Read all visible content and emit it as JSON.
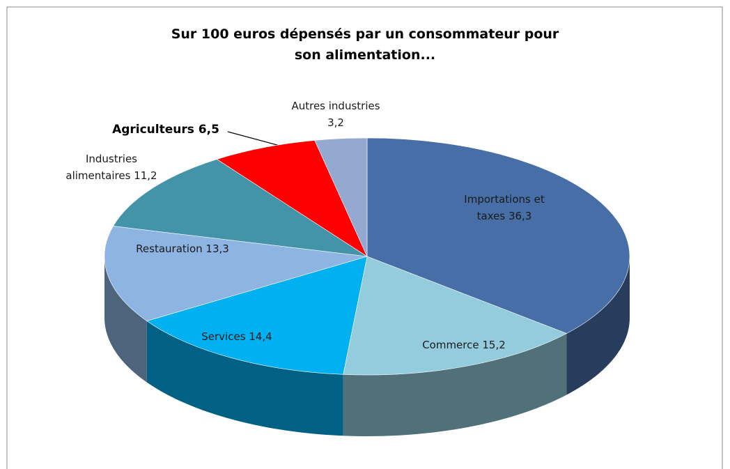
{
  "chart_data": {
    "type": "pie",
    "title": "Sur 100 euros dépensés par un consommateur pour son alimentation...",
    "categories": [
      "Importations et taxes",
      "Commerce",
      "Services",
      "Restauration",
      "Industries alimentaires",
      "Agriculteurs",
      "Autres industries"
    ],
    "values": [
      36.3,
      15.2,
      14.4,
      13.3,
      11.2,
      6.5,
      3.2
    ],
    "value_labels": [
      "36,3",
      "15,2",
      "14,4",
      "13,3",
      "11,2",
      "6,5",
      "3,2"
    ],
    "colors": [
      "#476ea6",
      "#93cddd",
      "#00b0f0",
      "#8db4e2",
      "#4394a8",
      "#ff0000",
      "#95a8cf"
    ]
  }
}
